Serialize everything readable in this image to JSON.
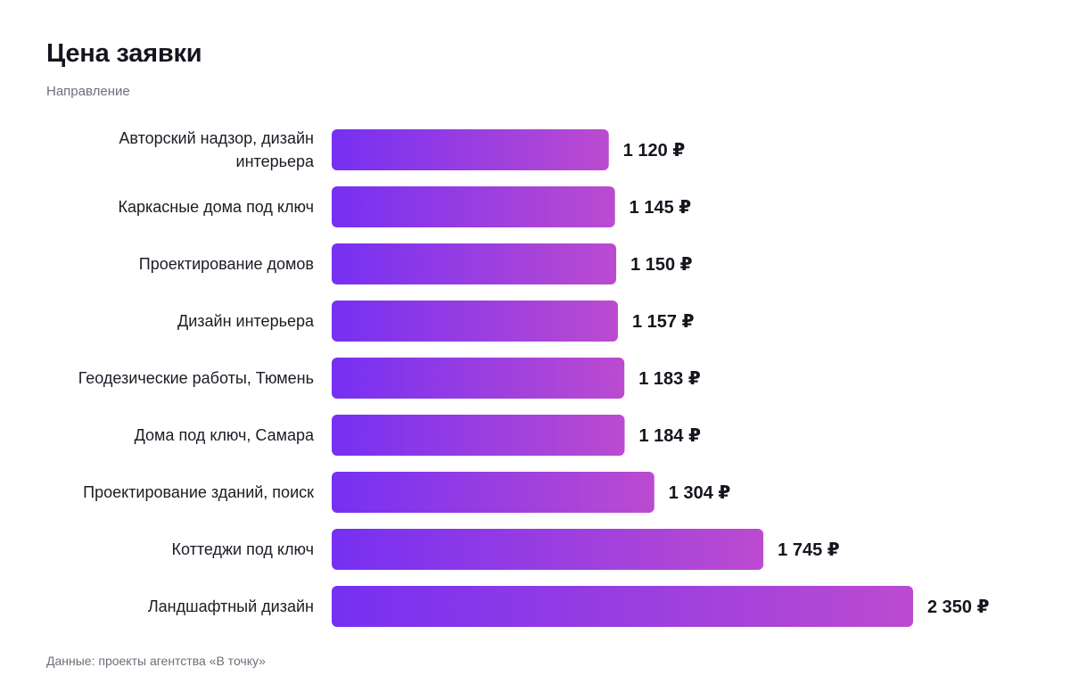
{
  "chart_data": {
    "type": "bar",
    "orientation": "horizontal",
    "title": "Цена заявки",
    "subtitle": "Направление",
    "categories": [
      "Авторский надзор, дизайн интерьера",
      "Каркасные дома под ключ",
      "Проектирование домов",
      "Дизайн интерьера",
      "Геодезические работы, Тюмень",
      "Дома под ключ, Самара",
      "Проектирование зданий, поиск",
      "Коттеджи под ключ",
      "Ландшафтный дизайн"
    ],
    "values": [
      1120,
      1145,
      1150,
      1157,
      1183,
      1184,
      1304,
      1745,
      2350
    ],
    "value_labels": [
      "1 120 ₽",
      "1 145 ₽",
      "1 150 ₽",
      "1 157 ₽",
      "1 183 ₽",
      "1 184 ₽",
      "1 304 ₽",
      "1 745 ₽",
      "2 350 ₽"
    ],
    "colors": {
      "bar_start": "#7630f2",
      "bar_end": "#bb4bd0",
      "text": "#16161f",
      "muted": "#6e6e7a"
    },
    "xlabel": "",
    "ylabel": "",
    "grid": false,
    "legend": "none",
    "source": "Данные: проекты агентства «В точку»"
  }
}
